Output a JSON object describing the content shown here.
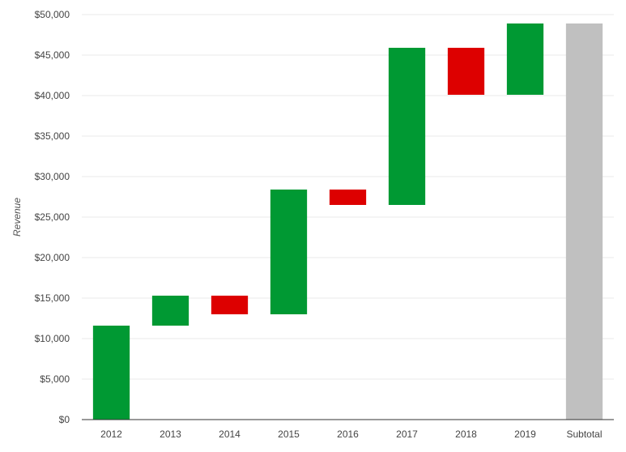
{
  "chart_data": {
    "type": "waterfall",
    "title": "",
    "xlabel": "",
    "ylabel": "Revenue",
    "ylim": [
      0,
      50000
    ],
    "y_ticks": [
      "$0",
      "$5,000",
      "$10,000",
      "$15,000",
      "$20,000",
      "$25,000",
      "$30,000",
      "$35,000",
      "$40,000",
      "$45,000",
      "$50,000"
    ],
    "grid": true,
    "categories": [
      "2012",
      "2013",
      "2014",
      "2015",
      "2016",
      "2017",
      "2018",
      "2019",
      "Subtotal"
    ],
    "changes": [
      11600,
      3700,
      -2300,
      15400,
      -1900,
      19400,
      -5800,
      8800,
      null
    ],
    "bars": [
      {
        "category": "2012",
        "start": 0,
        "end": 11600,
        "kind": "increase"
      },
      {
        "category": "2013",
        "start": 11600,
        "end": 15300,
        "kind": "increase"
      },
      {
        "category": "2014",
        "start": 15300,
        "end": 13000,
        "kind": "decrease"
      },
      {
        "category": "2015",
        "start": 13000,
        "end": 28400,
        "kind": "increase"
      },
      {
        "category": "2016",
        "start": 28400,
        "end": 26500,
        "kind": "decrease"
      },
      {
        "category": "2017",
        "start": 26500,
        "end": 45900,
        "kind": "increase"
      },
      {
        "category": "2018",
        "start": 45900,
        "end": 40100,
        "kind": "decrease"
      },
      {
        "category": "2019",
        "start": 40100,
        "end": 48900,
        "kind": "increase"
      },
      {
        "category": "Subtotal",
        "start": 0,
        "end": 48900,
        "kind": "total"
      }
    ],
    "colors": {
      "increase": "#009933",
      "decrease": "#dd0000",
      "total": "#c0c0c0",
      "grid": "#e8e8e8",
      "axis": "#333333"
    }
  }
}
